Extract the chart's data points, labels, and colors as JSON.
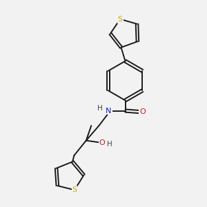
{
  "background_color": "#f2f2f2",
  "bond_color": "#1a1a1a",
  "bond_width": 1.4,
  "atom_colors": {
    "S": "#ccaa00",
    "N": "#1a1acc",
    "O": "#cc1a1a",
    "H": "#444444"
  },
  "figsize": [
    3.0,
    3.0
  ],
  "dpi": 100
}
